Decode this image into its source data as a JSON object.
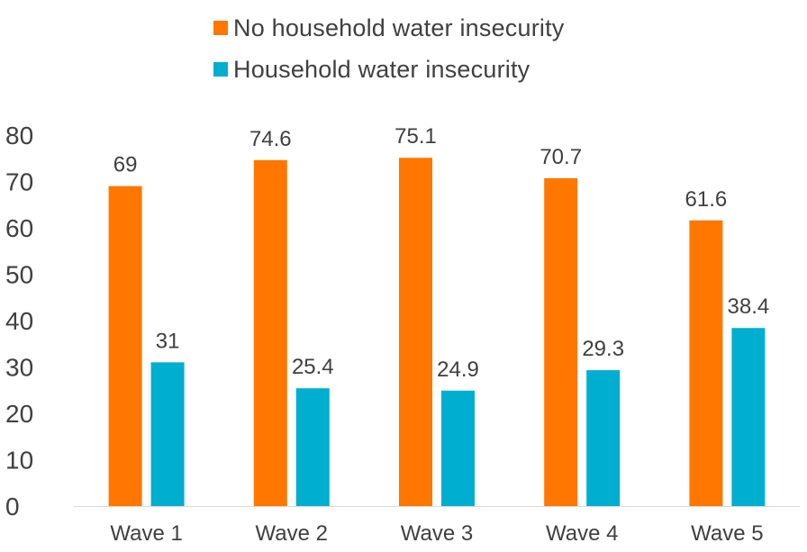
{
  "chart_data": {
    "type": "bar",
    "categories": [
      "Wave 1",
      "Wave 2",
      "Wave 3",
      "Wave 4",
      "Wave 5"
    ],
    "series": [
      {
        "name": "No household water insecurity",
        "color": "#FF7700",
        "values": [
          69,
          74.6,
          75.1,
          70.7,
          61.6
        ]
      },
      {
        "name": "Household water insecurity",
        "color": "#00AECF",
        "values": [
          31,
          25.4,
          24.9,
          29.3,
          38.4
        ]
      }
    ],
    "ylim": [
      0,
      80
    ],
    "yticks": [
      0,
      10,
      20,
      30,
      40,
      50,
      60,
      70,
      80
    ],
    "data_labels": [
      [
        "69",
        "74.6",
        "75.1",
        "70.7",
        "61.6"
      ],
      [
        "31",
        "25.4",
        "24.9",
        "29.3",
        "38.4"
      ]
    ],
    "legend_position": "top",
    "grid": false
  }
}
